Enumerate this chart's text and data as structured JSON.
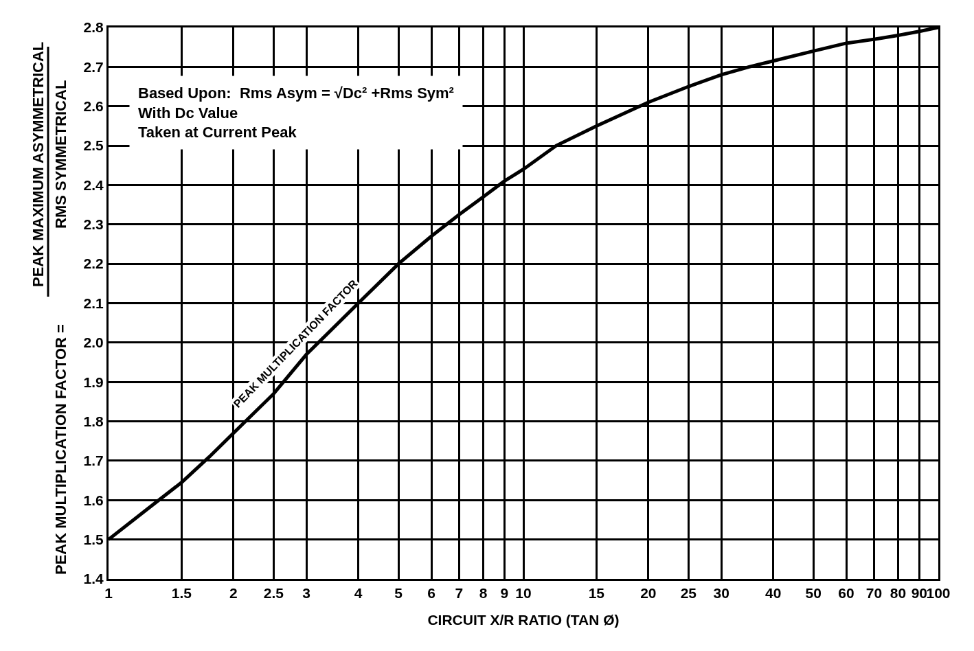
{
  "chart_data": {
    "type": "line",
    "xlabel": "CIRCUIT X/R RATIO (TAN Ø)",
    "ylabel": "PEAK MULTIPLICATION FACTOR =",
    "x": [
      1,
      1.25,
      1.5,
      1.75,
      2,
      2.5,
      3,
      4,
      5,
      6,
      7,
      8,
      9,
      10,
      12,
      15,
      20,
      25,
      30,
      35,
      40,
      50,
      60,
      70,
      80,
      90,
      100
    ],
    "series": [
      {
        "color": "#000000",
        "values": [
          1.5,
          1.58,
          1.645,
          1.71,
          1.77,
          1.87,
          1.97,
          2.1,
          2.2,
          2.27,
          2.325,
          2.37,
          2.41,
          2.44,
          2.5,
          2.55,
          2.61,
          2.65,
          2.68,
          2.7,
          2.715,
          2.74,
          2.76,
          2.77,
          2.78,
          2.79,
          2.8
        ]
      }
    ],
    "log": "x",
    "xlim": [
      1,
      100
    ],
    "ylim": [
      1.4,
      2.8
    ],
    "xticks": [
      1,
      1.5,
      2,
      2.5,
      3,
      4,
      5,
      6,
      7,
      8,
      9,
      10,
      15,
      20,
      25,
      30,
      40,
      50,
      60,
      70,
      80,
      90,
      100
    ],
    "yticks": [
      1.4,
      1.5,
      1.6,
      1.7,
      1.8,
      1.9,
      {
        "value": 2,
        "label": "2.0"
      },
      2.1,
      2.2,
      2.3,
      2.4,
      2.5,
      2.6,
      2.7,
      2.8
    ],
    "grid": true,
    "marker": "none",
    "line_style": "solid",
    "annotations": [
      "Based Upon:  Rms Asym = √Dc² +Rms Sym²\nWith Dc Value\nTaken at Current Peak",
      "PEAK MAXIMUM ASYMMETRICAL",
      "RMS SYMMETRICAL",
      "PEAK MULTIPLICATION FACTOR"
    ]
  }
}
